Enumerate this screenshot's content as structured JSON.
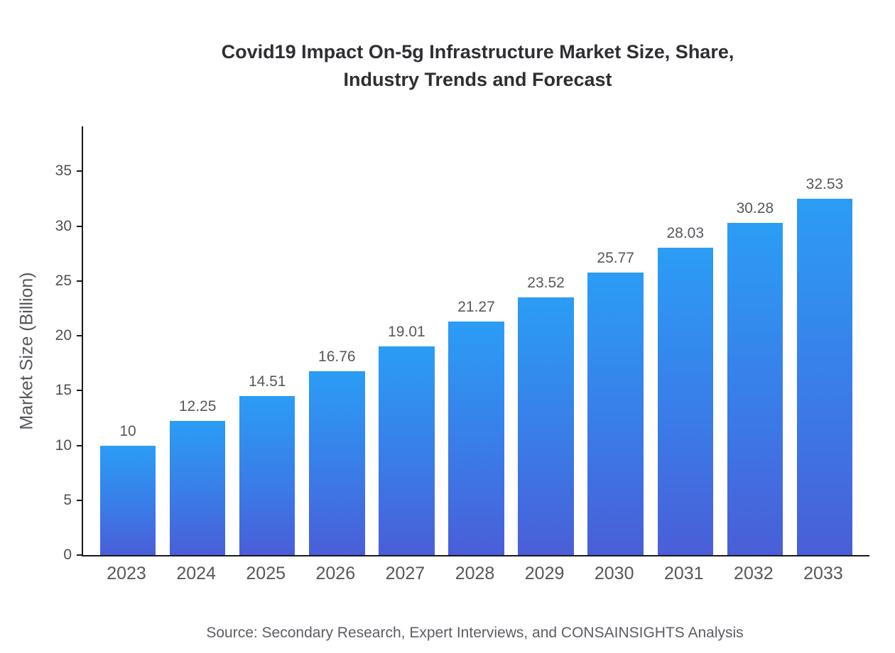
{
  "title": {
    "line1": "Covid19 Impact On-5g Infrastructure Market Size, Share,",
    "line2": "Industry Trends and Forecast"
  },
  "source": "Source: Secondary Research, Expert Interviews, and CONSAINSIGHTS Analysis",
  "chart_data": {
    "type": "bar",
    "title": "Covid19 Impact On-5g Infrastructure Market Size, Share, Industry Trends and Forecast",
    "xlabel": "",
    "ylabel": "Market Size (Billion)",
    "categories": [
      "2023",
      "2024",
      "2025",
      "2026",
      "2027",
      "2028",
      "2029",
      "2030",
      "2031",
      "2032",
      "2033"
    ],
    "values": [
      10,
      12.25,
      14.51,
      16.76,
      19.01,
      21.27,
      23.52,
      25.77,
      28.03,
      30.28,
      32.53
    ],
    "value_labels": [
      "10",
      "12.25",
      "14.51",
      "16.76",
      "19.01",
      "21.27",
      "23.52",
      "25.77",
      "28.03",
      "30.28",
      "32.53"
    ],
    "ylim": [
      0,
      39.1
    ],
    "yticks": [
      0,
      5,
      10,
      15,
      20,
      25,
      30,
      35
    ],
    "grid": "off",
    "legend": "none",
    "bar_gradient_top": "#2b9df5",
    "bar_gradient_bottom": "#4a5ed8",
    "axis_color": "#16181a",
    "label_color": "#55585c"
  }
}
